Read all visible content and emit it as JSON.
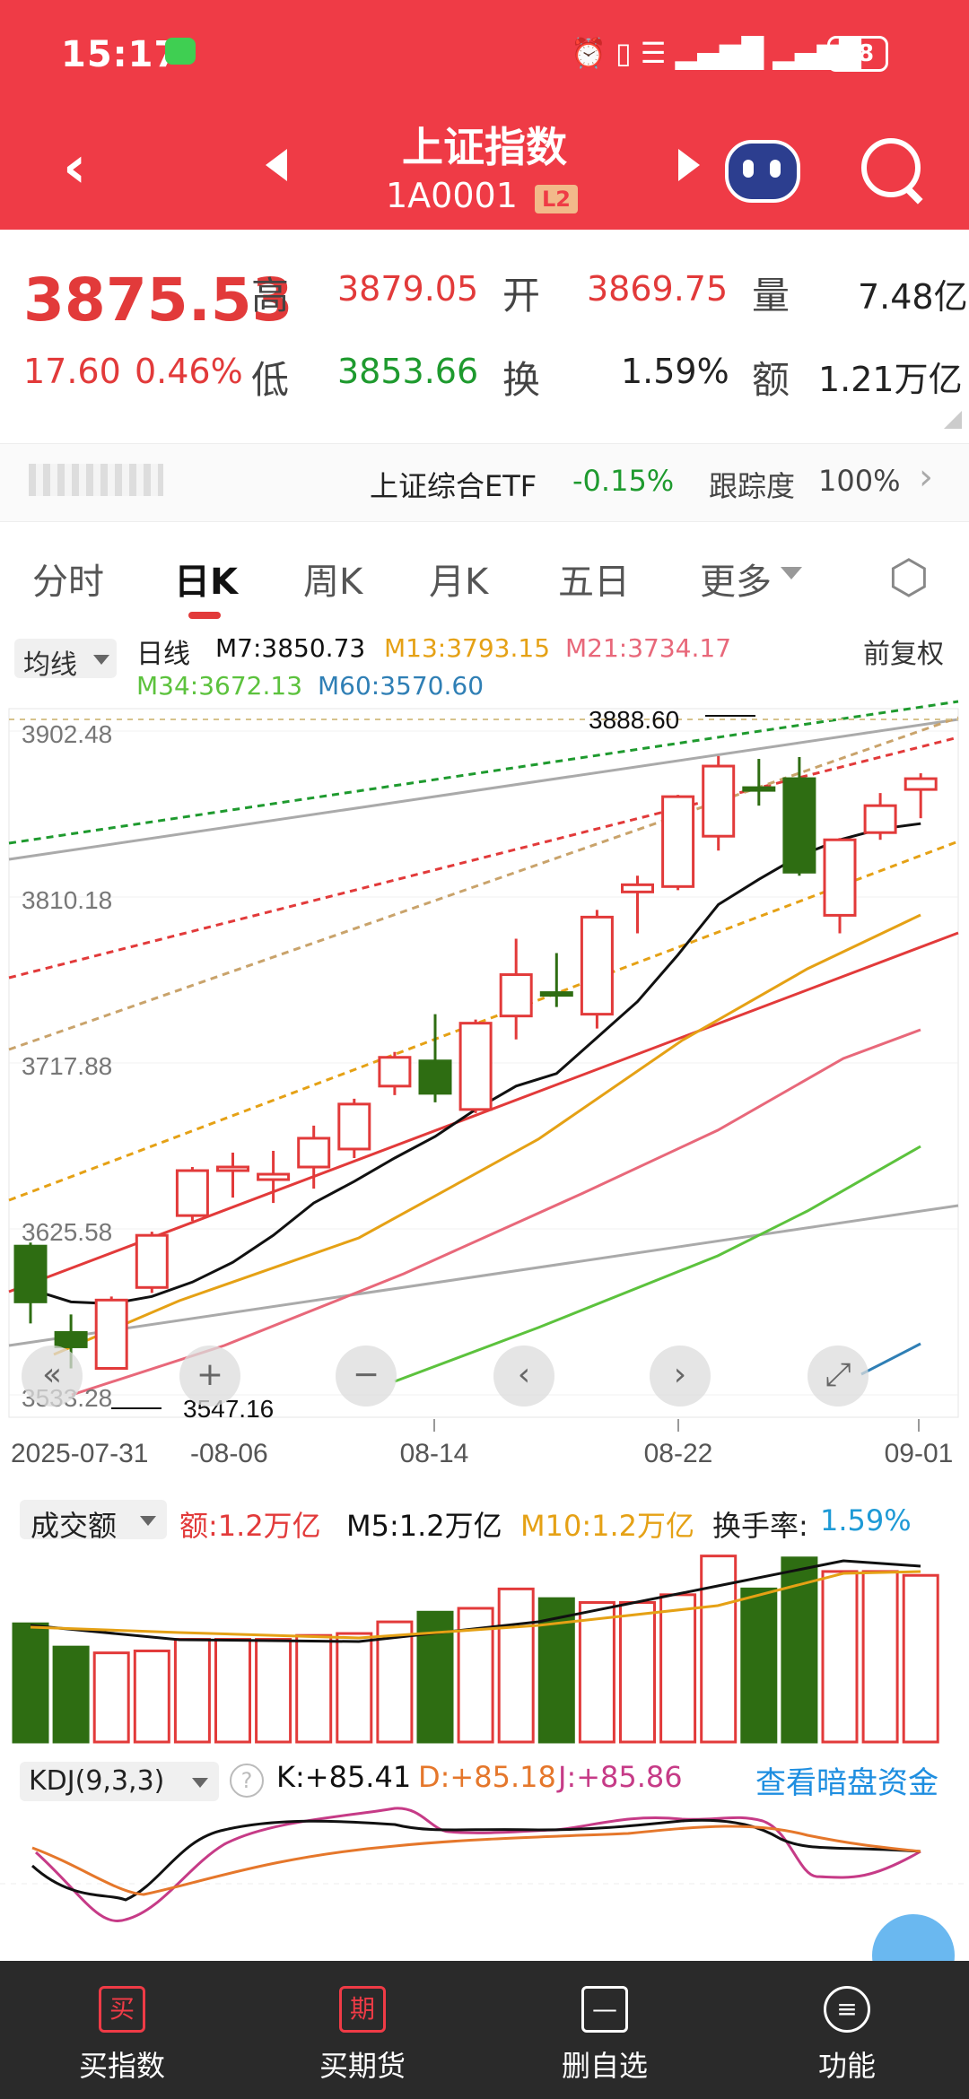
{
  "status": {
    "time": "15:17",
    "battery": "38"
  },
  "header": {
    "title": "上证指数",
    "code": "1A0001",
    "badge": "L2"
  },
  "quote": {
    "price": "3875.53",
    "change": "17.60",
    "change_pct": "0.46%",
    "high_label": "高",
    "high": "3879.05",
    "open_label": "开",
    "open": "3869.75",
    "vol_label": "量",
    "vol": "7.48亿",
    "low_label": "低",
    "low": "3853.66",
    "turnover_label": "换",
    "turnover": "1.59%",
    "amount_label": "额",
    "amount": "1.21万亿"
  },
  "etf": {
    "name": "上证综合ETF",
    "change": "-0.15%",
    "track_label": "跟踪度",
    "track": "100%"
  },
  "tabs": [
    "分时",
    "日K",
    "周K",
    "月K",
    "五日",
    "更多"
  ],
  "indicator": {
    "selector": "均线",
    "series_label": "日线",
    "adjust": "前复权",
    "ma": [
      {
        "label": "M7:3850.73",
        "color": "#111111"
      },
      {
        "label": "M13:3793.15",
        "color": "#e5a115"
      },
      {
        "label": "M21:3734.17",
        "color": "#e8687a"
      },
      {
        "label": "M34:3672.13",
        "color": "#5cc23d"
      },
      {
        "label": "M60:3570.60",
        "color": "#2f7fb5"
      }
    ]
  },
  "chart_data": {
    "type": "candlestick",
    "y_ticks": [
      "3902.48",
      "3810.18",
      "3717.88",
      "3625.58",
      "3533.28"
    ],
    "x_ticks": [
      "2025-07-31",
      "08-06",
      "08-14",
      "08-22",
      "09-01"
    ],
    "annotations": {
      "high": "3888.60",
      "low": "3547.16"
    },
    "candles": [
      {
        "o": 3585,
        "c": 3616,
        "h": 3618,
        "l": 3573,
        "up": false
      },
      {
        "o": 3560,
        "c": 3568,
        "h": 3578,
        "l": 3548,
        "up": false
      },
      {
        "o": 3548,
        "c": 3586,
        "h": 3588,
        "l": 3547.16,
        "up": true
      },
      {
        "o": 3593,
        "c": 3622,
        "h": 3624,
        "l": 3590,
        "up": true
      },
      {
        "o": 3633,
        "c": 3658,
        "h": 3660,
        "l": 3630,
        "up": true
      },
      {
        "o": 3658,
        "c": 3660,
        "h": 3668,
        "l": 3643,
        "up": true
      },
      {
        "o": 3653,
        "c": 3656,
        "h": 3669,
        "l": 3640,
        "up": true
      },
      {
        "o": 3660,
        "c": 3676,
        "h": 3683,
        "l": 3648,
        "up": true
      },
      {
        "o": 3670,
        "c": 3695,
        "h": 3698,
        "l": 3665,
        "up": true
      },
      {
        "o": 3705,
        "c": 3721,
        "h": 3724,
        "l": 3700,
        "up": true
      },
      {
        "o": 3719,
        "c": 3701,
        "h": 3745,
        "l": 3696,
        "up": false
      },
      {
        "o": 3692,
        "c": 3740,
        "h": 3742,
        "l": 3690,
        "up": true
      },
      {
        "o": 3744,
        "c": 3767,
        "h": 3787,
        "l": 3731,
        "up": true
      },
      {
        "o": 3756,
        "c": 3757,
        "h": 3779,
        "l": 3749,
        "up": false
      },
      {
        "o": 3745,
        "c": 3799,
        "h": 3803,
        "l": 3737,
        "up": true
      },
      {
        "o": 3813,
        "c": 3817,
        "h": 3822,
        "l": 3790,
        "up": true
      },
      {
        "o": 3816,
        "c": 3866,
        "h": 3867,
        "l": 3814,
        "up": true
      },
      {
        "o": 3844,
        "c": 3883,
        "h": 3888.6,
        "l": 3836,
        "up": true
      },
      {
        "o": 3870,
        "c": 3871,
        "h": 3887,
        "l": 3861,
        "up": false
      },
      {
        "o": 3876,
        "c": 3824,
        "h": 3888,
        "l": 3822,
        "up": false
      },
      {
        "o": 3800,
        "c": 3842,
        "h": 3843,
        "l": 3790,
        "up": true
      },
      {
        "o": 3846,
        "c": 3861,
        "h": 3868,
        "l": 3842,
        "up": true
      },
      {
        "o": 3870,
        "c": 3876,
        "h": 3879,
        "l": 3854,
        "up": true
      }
    ],
    "ma7": [
      3592,
      3585,
      3584,
      3588,
      3596,
      3607,
      3622,
      3640,
      3652,
      3665,
      3677,
      3692,
      3705,
      3712,
      3732,
      3752,
      3778,
      3806,
      3820,
      3833,
      3842,
      3848,
      3851
    ]
  },
  "volume": {
    "selector": "成交额",
    "amount": "额:1.2万亿",
    "m5": "M5:1.2万亿",
    "m10": "M10:1.2万亿",
    "turnover_label": "换手率:",
    "turnover": "1.59%",
    "bars": [
      0.61,
      0.49,
      0.46,
      0.47,
      0.53,
      0.53,
      0.53,
      0.55,
      0.56,
      0.62,
      0.67,
      0.69,
      0.79,
      0.74,
      0.72,
      0.72,
      0.76,
      0.96,
      0.79,
      0.95,
      0.88,
      0.88,
      0.86
    ],
    "up": [
      false,
      false,
      true,
      true,
      true,
      true,
      true,
      true,
      true,
      true,
      false,
      true,
      true,
      false,
      true,
      true,
      true,
      true,
      false,
      false,
      true,
      true,
      true
    ]
  },
  "kdj": {
    "selector": "KDJ(9,3,3)",
    "k": "K:+85.41",
    "d": "D:+85.18",
    "j": "J:+85.86",
    "link": "查看暗盘资金"
  },
  "nav": [
    {
      "icon": "买",
      "label": "买指数"
    },
    {
      "icon": "期",
      "label": "买期货"
    },
    {
      "icon": "—",
      "label": "删自选"
    },
    {
      "icon": "≡",
      "label": "功能"
    }
  ],
  "colors": {
    "up": "#e23a3a",
    "down": "#2e6d12",
    "header": "#ef3b46"
  }
}
